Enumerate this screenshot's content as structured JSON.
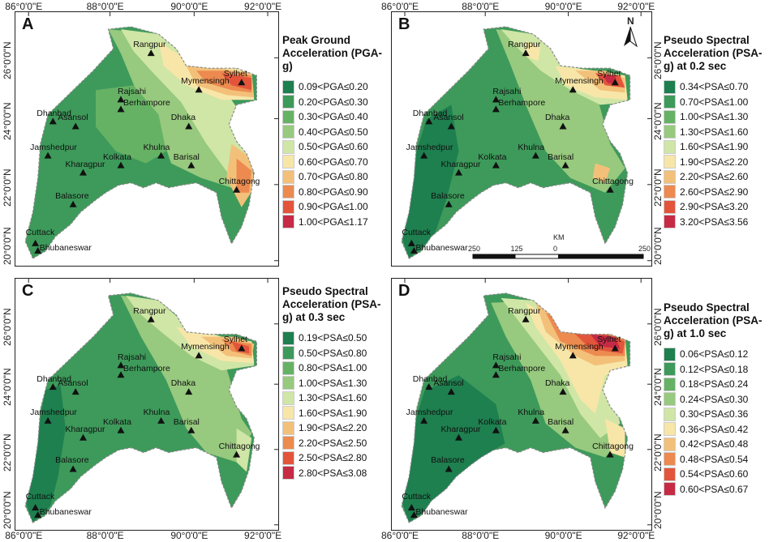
{
  "axes": {
    "lon_ticks": [
      "86°0'0\"E",
      "88°0'0\"E",
      "90°0'0\"E",
      "92°0'0\"E"
    ],
    "lat_ticks": [
      "26°0'0\"N",
      "24°0'0\"N",
      "22°0'0\"N",
      "20°0'0\"N"
    ]
  },
  "cities": [
    "Rangpur",
    "Sylhet",
    "Mymensingh",
    "Rajsahi",
    "Berhampore",
    "Asansol",
    "Dhanbad",
    "Dhaka",
    "Jamshedpur",
    "Kolkata",
    "Khulna",
    "Barisal",
    "Kharagpur",
    "Chittagong",
    "Balasore",
    "Cuttack",
    "Bhubaneswar"
  ],
  "north_arrow": {
    "label": "N"
  },
  "scale_bar": {
    "unit": "KM",
    "labels": [
      "250",
      "125",
      "0",
      "250"
    ]
  },
  "panels": [
    {
      "id": "A",
      "legend_title": "Peak Ground Acceleration (PGA-g)",
      "classes": [
        "0.09<PGA≤0.20",
        "0.20<PGA≤0.30",
        "0.30<PGA≤0.40",
        "0.40<PGA≤0.50",
        "0.50<PGA≤0.60",
        "0.60<PGA≤0.70",
        "0.70<PGA≤0.80",
        "0.80<PGA≤0.90",
        "0.90<PGA≤1.00",
        "1.00<PGA≤1.17"
      ],
      "colors": [
        "#1e7f4f",
        "#3d9a5a",
        "#66b265",
        "#97c97e",
        "#cfe6a6",
        "#f7e6a8",
        "#f3c07a",
        "#ec8a4f",
        "#e2553b",
        "#c62a44"
      ]
    },
    {
      "id": "B",
      "legend_title": "Pseudo Spectral Acceleration (PSA-g) at 0.2 sec",
      "classes": [
        "0.34<PSA≤0.70",
        "0.70<PSA≤1.00",
        "1.00<PSA≤1.30",
        "1.30<PSA≤1.60",
        "1.60<PSA≤1.90",
        "1.90<PSA≤2.20",
        "2.20<PSA≤2.60",
        "2.60<PSA≤2.90",
        "2.90<PSA≤3.20",
        "3.20<PSA≤3.56"
      ],
      "colors": [
        "#1e7f4f",
        "#3d9a5a",
        "#66b265",
        "#97c97e",
        "#cfe6a6",
        "#f7e6a8",
        "#f3c07a",
        "#ec8a4f",
        "#e2553b",
        "#c62a44"
      ]
    },
    {
      "id": "C",
      "legend_title": "Pseudo Spectral Acceleration (PSA-g) at 0.3 sec",
      "classes": [
        "0.19<PSA≤0.50",
        "0.50<PSA≤0.80",
        "0.80<PSA≤1.00",
        "1.00<PSA≤1.30",
        "1.30<PSA≤1.60",
        "1.60<PSA≤1.90",
        "1.90<PSA≤2.20",
        "2.20<PSA≤2.50",
        "2.50<PSA≤2.80",
        "2.80<PSA≤3.08"
      ],
      "colors": [
        "#1e7f4f",
        "#3d9a5a",
        "#66b265",
        "#97c97e",
        "#cfe6a6",
        "#f7e6a8",
        "#f3c07a",
        "#ec8a4f",
        "#e2553b",
        "#c62a44"
      ]
    },
    {
      "id": "D",
      "legend_title": "Pseudo Spectral Acceleration (PSA-g) at 1.0 sec",
      "classes": [
        "0.06<PSA≤0.12",
        "0.12<PSA≤0.18",
        "0.18<PSA≤0.24",
        "0.24<PSA≤0.30",
        "0.30<PSA≤0.36",
        "0.36<PSA≤0.42",
        "0.42<PSA≤0.48",
        "0.48<PSA≤0.54",
        "0.54<PSA≤0.60",
        "0.60<PSA≤0.67"
      ],
      "colors": [
        "#1e7f4f",
        "#3d9a5a",
        "#66b265",
        "#97c97e",
        "#cfe6a6",
        "#f7e6a8",
        "#f3c07a",
        "#ec8a4f",
        "#e2553b",
        "#c62a44"
      ]
    }
  ]
}
